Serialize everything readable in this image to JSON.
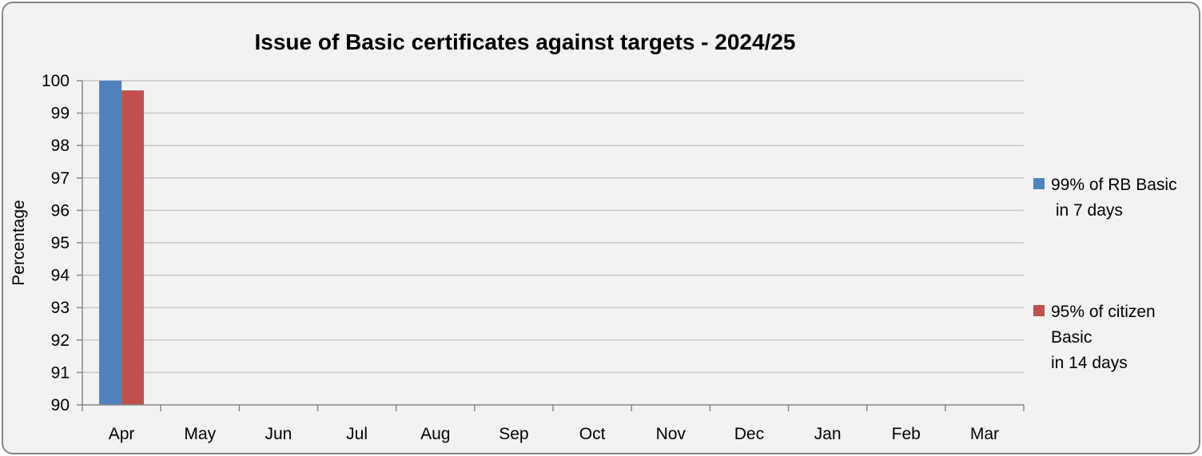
{
  "chart_data": {
    "type": "bar",
    "title": "Issue of Basic certificates against targets - 2024/25",
    "xlabel": "",
    "ylabel": "Percentage",
    "ylim": [
      90,
      100
    ],
    "yticks": [
      "90",
      "91",
      "92",
      "93",
      "94",
      "95",
      "96",
      "97",
      "98",
      "99",
      "100"
    ],
    "categories": [
      "Apr",
      "May",
      "Jun",
      "Jul",
      "Aug",
      "Sep",
      "Oct",
      "Nov",
      "Dec",
      "Jan",
      "Feb",
      "Mar"
    ],
    "series": [
      {
        "name": "99% of RB Basic in 7 days",
        "legend_lines": [
          "99% of RB Basic",
          " in 7 days"
        ],
        "color": "#4f81bd",
        "values": [
          100,
          null,
          null,
          null,
          null,
          null,
          null,
          null,
          null,
          null,
          null,
          null
        ]
      },
      {
        "name": "95% of citizen Basic in 14 days",
        "legend_lines": [
          "95% of citizen",
          "Basic",
          "in 14 days"
        ],
        "color": "#c0504d",
        "values": [
          99.7,
          null,
          null,
          null,
          null,
          null,
          null,
          null,
          null,
          null,
          null,
          null
        ]
      }
    ],
    "grid": true,
    "legend_position": "right"
  }
}
